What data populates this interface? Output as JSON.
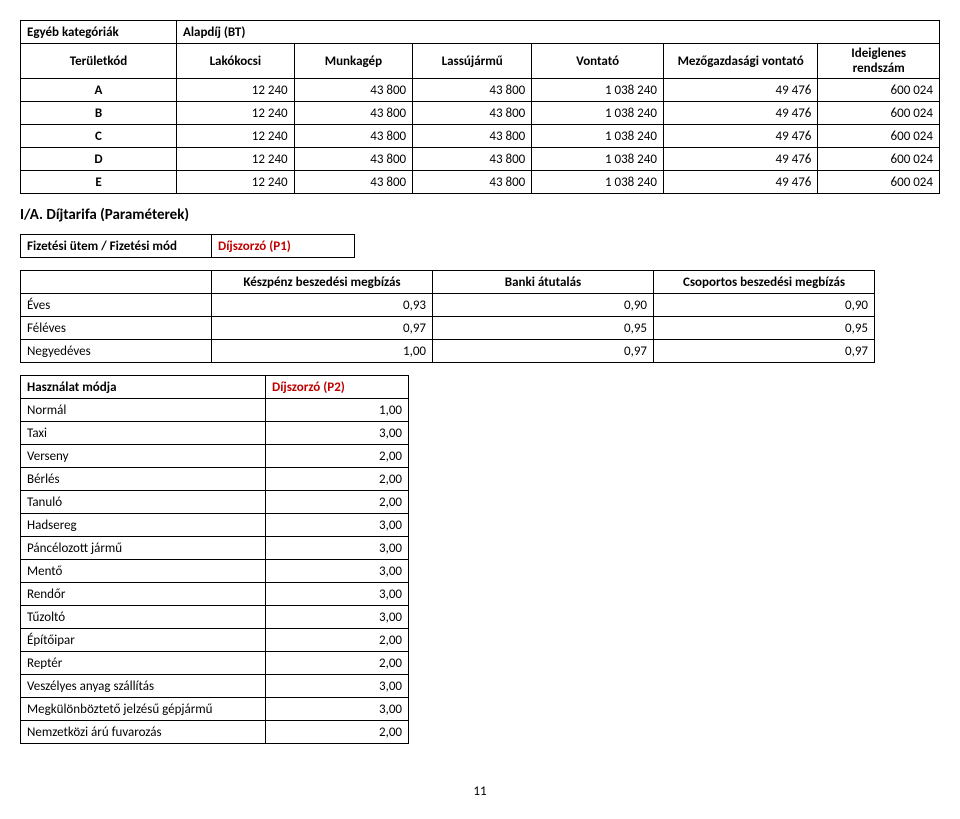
{
  "table1": {
    "header1": {
      "left": "Egyéb kategóriák",
      "right": "Alapdíj (BT)"
    },
    "header2": [
      "Területkód",
      "Lakókocsi",
      "Munkagép",
      "Lassújármű",
      "Vontató",
      "Mezőgazdasági vontató",
      "Ideiglenes rendszám"
    ],
    "rows": [
      {
        "code": "A",
        "v": [
          "12 240",
          "43 800",
          "43 800",
          "1 038 240",
          "49 476",
          "600 024"
        ]
      },
      {
        "code": "B",
        "v": [
          "12 240",
          "43 800",
          "43 800",
          "1 038 240",
          "49 476",
          "600 024"
        ]
      },
      {
        "code": "C",
        "v": [
          "12 240",
          "43 800",
          "43 800",
          "1 038 240",
          "49 476",
          "600 024"
        ]
      },
      {
        "code": "D",
        "v": [
          "12 240",
          "43 800",
          "43 800",
          "1 038 240",
          "49 476",
          "600 024"
        ]
      },
      {
        "code": "E",
        "v": [
          "12 240",
          "43 800",
          "43 800",
          "1 038 240",
          "49 476",
          "600 024"
        ]
      }
    ]
  },
  "section_title": "I/A. Díjtarifa (Paraméterek)",
  "table2_top": {
    "left": "Fizetési ütem / Fizetési mód",
    "right": "Díjszorzó (P1)"
  },
  "table2_head": [
    "",
    "Készpénz beszedési megbízás",
    "Banki átutalás",
    "Csoportos beszedési megbízás"
  ],
  "table2_rows": [
    {
      "label": "Éves",
      "v": [
        "0,93",
        "0,90",
        "0,90"
      ]
    },
    {
      "label": "Féléves",
      "v": [
        "0,97",
        "0,95",
        "0,95"
      ]
    },
    {
      "label": "Negyedéves",
      "v": [
        "1,00",
        "0,97",
        "0,97"
      ]
    }
  ],
  "table3_head": {
    "left": "Használat módja",
    "right": "Díjszorzó (P2)"
  },
  "table3_rows": [
    {
      "label": "Normál",
      "v": "1,00"
    },
    {
      "label": "Taxi",
      "v": "3,00"
    },
    {
      "label": "Verseny",
      "v": "2,00"
    },
    {
      "label": "Bérlés",
      "v": "2,00"
    },
    {
      "label": "Tanuló",
      "v": "2,00"
    },
    {
      "label": "Hadsereg",
      "v": "3,00"
    },
    {
      "label": "Páncélozott jármű",
      "v": "3,00"
    },
    {
      "label": "Mentő",
      "v": "3,00"
    },
    {
      "label": "Rendőr",
      "v": "3,00"
    },
    {
      "label": "Tűzoltó",
      "v": "3,00"
    },
    {
      "label": "Építőipar",
      "v": "2,00"
    },
    {
      "label": "Reptér",
      "v": "2,00"
    },
    {
      "label": "Veszélyes anyag szállítás",
      "v": "3,00"
    },
    {
      "label": "Megkülönböztető jelzésű gépjármű",
      "v": "3,00"
    },
    {
      "label": "Nemzetközi árú fuvarozás",
      "v": "2,00"
    }
  ],
  "page_number": "11"
}
